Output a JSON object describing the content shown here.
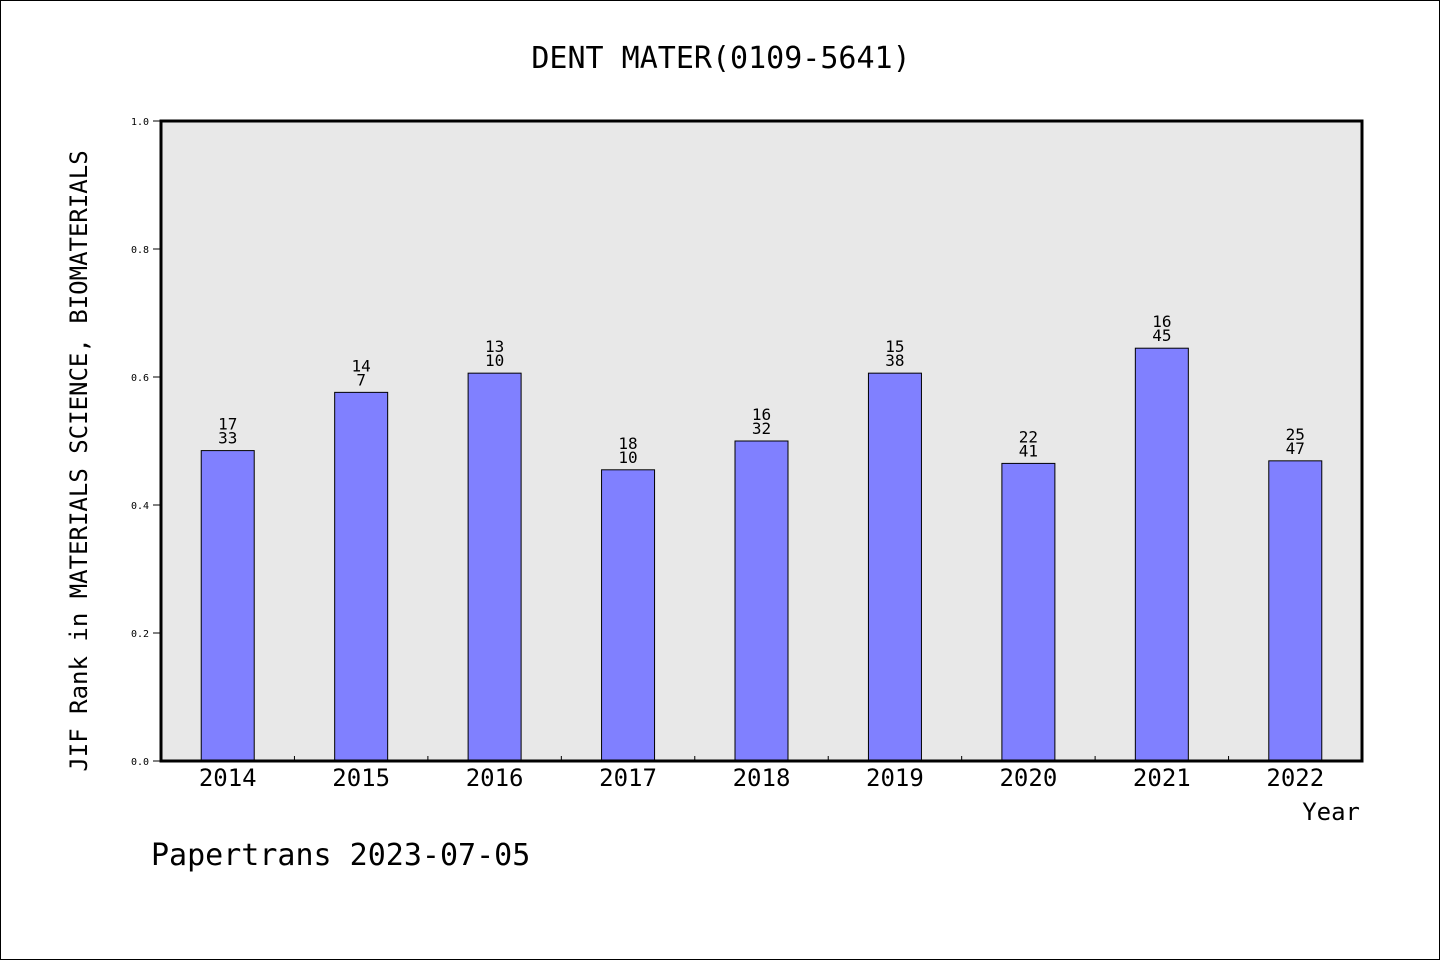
{
  "chart_data": {
    "type": "bar",
    "title": "DENT MATER(0109-5641)",
    "xlabel": "Year",
    "ylabel": "JIF Rank in MATERIALS SCIENCE, BIOMATERIALS",
    "categories": [
      "2014",
      "2015",
      "2016",
      "2017",
      "2018",
      "2019",
      "2020",
      "2021",
      "2022"
    ],
    "values": [
      0.485,
      0.576,
      0.606,
      0.455,
      0.5,
      0.606,
      0.465,
      0.645,
      0.469
    ],
    "labels_top": [
      "17",
      "14",
      "13",
      "18",
      "16",
      "15",
      "22",
      "16",
      "25"
    ],
    "labels_bottom": [
      "33",
      "7",
      "10",
      "10",
      "32",
      "38",
      "41",
      "45",
      "47"
    ],
    "ylim": [
      0,
      1.0
    ],
    "yticks": [
      "0.0",
      "0.2",
      "0.4",
      "0.6",
      "0.8",
      "1.0"
    ],
    "grid": false,
    "colors": {
      "bar": "#8080ff",
      "plot_bg": "#e8e8e8"
    }
  },
  "footer": {
    "text": "Papertrans 2023-07-05"
  }
}
